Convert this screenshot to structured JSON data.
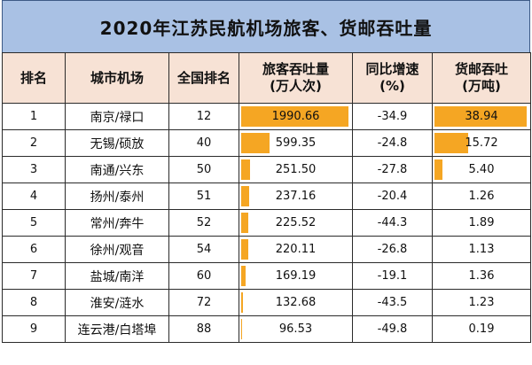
{
  "title": "2020年江苏民航机场旅客、货邮吞吐量",
  "headers": {
    "rank": "排名",
    "city": "城市机场",
    "national": "全国排名",
    "passenger_line1": "旅客吞吐量",
    "passenger_line2": "(万人次)",
    "yoy_line1": "同比增速",
    "yoy_line2": "(%)",
    "cargo_line1": "货邮吞吐",
    "cargo_line2": "(万吨)"
  },
  "colors": {
    "title_bg": "#a9c1e4",
    "header_bg": "#f7e2d5",
    "bar": "#f5a623"
  },
  "rows": [
    {
      "rank": "1",
      "city": "南京/禄口",
      "national": "12",
      "passenger": "1990.66",
      "yoy": "-34.9",
      "cargo": "38.94"
    },
    {
      "rank": "2",
      "city": "无锡/硕放",
      "national": "40",
      "passenger": "599.35",
      "yoy": "-24.8",
      "cargo": "15.72"
    },
    {
      "rank": "3",
      "city": "南通/兴东",
      "national": "50",
      "passenger": "251.50",
      "yoy": "-27.8",
      "cargo": "5.40"
    },
    {
      "rank": "4",
      "city": "扬州/泰州",
      "national": "51",
      "passenger": "237.16",
      "yoy": "-20.4",
      "cargo": "1.26"
    },
    {
      "rank": "5",
      "city": "常州/奔牛",
      "national": "52",
      "passenger": "225.52",
      "yoy": "-44.3",
      "cargo": "1.89"
    },
    {
      "rank": "6",
      "city": "徐州/观音",
      "national": "54",
      "passenger": "220.11",
      "yoy": "-26.8",
      "cargo": "1.13"
    },
    {
      "rank": "7",
      "city": "盐城/南洋",
      "national": "60",
      "passenger": "169.19",
      "yoy": "-19.1",
      "cargo": "1.36"
    },
    {
      "rank": "8",
      "city": "淮安/涟水",
      "national": "72",
      "passenger": "132.68",
      "yoy": "-43.5",
      "cargo": "1.23"
    },
    {
      "rank": "9",
      "city": "连云港/白塔埠",
      "national": "88",
      "passenger": "96.53",
      "yoy": "-49.8",
      "cargo": "0.19"
    }
  ]
}
